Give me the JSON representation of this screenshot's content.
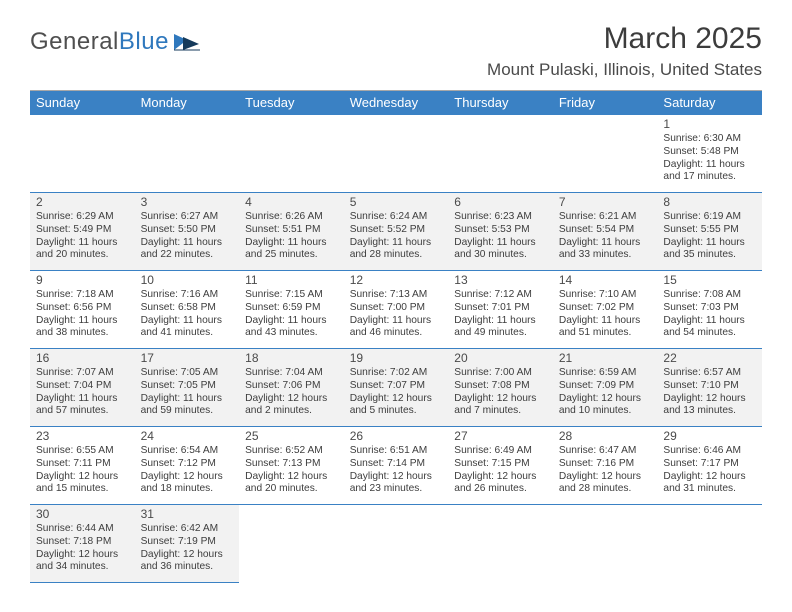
{
  "brand": {
    "general": "General",
    "blue": "Blue",
    "accent": "#2f78bd"
  },
  "header": {
    "title": "March 2025",
    "location": "Mount Pulaski, Illinois, United States"
  },
  "dow": [
    "Sunday",
    "Monday",
    "Tuesday",
    "Wednesday",
    "Thursday",
    "Friday",
    "Saturday"
  ],
  "row_bg": [
    "#ffffff",
    "#f2f2f2",
    "#ffffff",
    "#f2f2f2",
    "#ffffff",
    "#f2f2f2"
  ],
  "cell_border_color": "#3a81c4",
  "header_bg": "#3a81c4",
  "days": [
    {
      "n": "",
      "sunrise": "",
      "sunset": "",
      "daylight": ""
    },
    {
      "n": "",
      "sunrise": "",
      "sunset": "",
      "daylight": ""
    },
    {
      "n": "",
      "sunrise": "",
      "sunset": "",
      "daylight": ""
    },
    {
      "n": "",
      "sunrise": "",
      "sunset": "",
      "daylight": ""
    },
    {
      "n": "",
      "sunrise": "",
      "sunset": "",
      "daylight": ""
    },
    {
      "n": "",
      "sunrise": "",
      "sunset": "",
      "daylight": ""
    },
    {
      "n": "1",
      "sunrise": "Sunrise: 6:30 AM",
      "sunset": "Sunset: 5:48 PM",
      "daylight": "Daylight: 11 hours and 17 minutes."
    },
    {
      "n": "2",
      "sunrise": "Sunrise: 6:29 AM",
      "sunset": "Sunset: 5:49 PM",
      "daylight": "Daylight: 11 hours and 20 minutes."
    },
    {
      "n": "3",
      "sunrise": "Sunrise: 6:27 AM",
      "sunset": "Sunset: 5:50 PM",
      "daylight": "Daylight: 11 hours and 22 minutes."
    },
    {
      "n": "4",
      "sunrise": "Sunrise: 6:26 AM",
      "sunset": "Sunset: 5:51 PM",
      "daylight": "Daylight: 11 hours and 25 minutes."
    },
    {
      "n": "5",
      "sunrise": "Sunrise: 6:24 AM",
      "sunset": "Sunset: 5:52 PM",
      "daylight": "Daylight: 11 hours and 28 minutes."
    },
    {
      "n": "6",
      "sunrise": "Sunrise: 6:23 AM",
      "sunset": "Sunset: 5:53 PM",
      "daylight": "Daylight: 11 hours and 30 minutes."
    },
    {
      "n": "7",
      "sunrise": "Sunrise: 6:21 AM",
      "sunset": "Sunset: 5:54 PM",
      "daylight": "Daylight: 11 hours and 33 minutes."
    },
    {
      "n": "8",
      "sunrise": "Sunrise: 6:19 AM",
      "sunset": "Sunset: 5:55 PM",
      "daylight": "Daylight: 11 hours and 35 minutes."
    },
    {
      "n": "9",
      "sunrise": "Sunrise: 7:18 AM",
      "sunset": "Sunset: 6:56 PM",
      "daylight": "Daylight: 11 hours and 38 minutes."
    },
    {
      "n": "10",
      "sunrise": "Sunrise: 7:16 AM",
      "sunset": "Sunset: 6:58 PM",
      "daylight": "Daylight: 11 hours and 41 minutes."
    },
    {
      "n": "11",
      "sunrise": "Sunrise: 7:15 AM",
      "sunset": "Sunset: 6:59 PM",
      "daylight": "Daylight: 11 hours and 43 minutes."
    },
    {
      "n": "12",
      "sunrise": "Sunrise: 7:13 AM",
      "sunset": "Sunset: 7:00 PM",
      "daylight": "Daylight: 11 hours and 46 minutes."
    },
    {
      "n": "13",
      "sunrise": "Sunrise: 7:12 AM",
      "sunset": "Sunset: 7:01 PM",
      "daylight": "Daylight: 11 hours and 49 minutes."
    },
    {
      "n": "14",
      "sunrise": "Sunrise: 7:10 AM",
      "sunset": "Sunset: 7:02 PM",
      "daylight": "Daylight: 11 hours and 51 minutes."
    },
    {
      "n": "15",
      "sunrise": "Sunrise: 7:08 AM",
      "sunset": "Sunset: 7:03 PM",
      "daylight": "Daylight: 11 hours and 54 minutes."
    },
    {
      "n": "16",
      "sunrise": "Sunrise: 7:07 AM",
      "sunset": "Sunset: 7:04 PM",
      "daylight": "Daylight: 11 hours and 57 minutes."
    },
    {
      "n": "17",
      "sunrise": "Sunrise: 7:05 AM",
      "sunset": "Sunset: 7:05 PM",
      "daylight": "Daylight: 11 hours and 59 minutes."
    },
    {
      "n": "18",
      "sunrise": "Sunrise: 7:04 AM",
      "sunset": "Sunset: 7:06 PM",
      "daylight": "Daylight: 12 hours and 2 minutes."
    },
    {
      "n": "19",
      "sunrise": "Sunrise: 7:02 AM",
      "sunset": "Sunset: 7:07 PM",
      "daylight": "Daylight: 12 hours and 5 minutes."
    },
    {
      "n": "20",
      "sunrise": "Sunrise: 7:00 AM",
      "sunset": "Sunset: 7:08 PM",
      "daylight": "Daylight: 12 hours and 7 minutes."
    },
    {
      "n": "21",
      "sunrise": "Sunrise: 6:59 AM",
      "sunset": "Sunset: 7:09 PM",
      "daylight": "Daylight: 12 hours and 10 minutes."
    },
    {
      "n": "22",
      "sunrise": "Sunrise: 6:57 AM",
      "sunset": "Sunset: 7:10 PM",
      "daylight": "Daylight: 12 hours and 13 minutes."
    },
    {
      "n": "23",
      "sunrise": "Sunrise: 6:55 AM",
      "sunset": "Sunset: 7:11 PM",
      "daylight": "Daylight: 12 hours and 15 minutes."
    },
    {
      "n": "24",
      "sunrise": "Sunrise: 6:54 AM",
      "sunset": "Sunset: 7:12 PM",
      "daylight": "Daylight: 12 hours and 18 minutes."
    },
    {
      "n": "25",
      "sunrise": "Sunrise: 6:52 AM",
      "sunset": "Sunset: 7:13 PM",
      "daylight": "Daylight: 12 hours and 20 minutes."
    },
    {
      "n": "26",
      "sunrise": "Sunrise: 6:51 AM",
      "sunset": "Sunset: 7:14 PM",
      "daylight": "Daylight: 12 hours and 23 minutes."
    },
    {
      "n": "27",
      "sunrise": "Sunrise: 6:49 AM",
      "sunset": "Sunset: 7:15 PM",
      "daylight": "Daylight: 12 hours and 26 minutes."
    },
    {
      "n": "28",
      "sunrise": "Sunrise: 6:47 AM",
      "sunset": "Sunset: 7:16 PM",
      "daylight": "Daylight: 12 hours and 28 minutes."
    },
    {
      "n": "29",
      "sunrise": "Sunrise: 6:46 AM",
      "sunset": "Sunset: 7:17 PM",
      "daylight": "Daylight: 12 hours and 31 minutes."
    },
    {
      "n": "30",
      "sunrise": "Sunrise: 6:44 AM",
      "sunset": "Sunset: 7:18 PM",
      "daylight": "Daylight: 12 hours and 34 minutes."
    },
    {
      "n": "31",
      "sunrise": "Sunrise: 6:42 AM",
      "sunset": "Sunset: 7:19 PM",
      "daylight": "Daylight: 12 hours and 36 minutes."
    },
    {
      "n": "",
      "sunrise": "",
      "sunset": "",
      "daylight": ""
    },
    {
      "n": "",
      "sunrise": "",
      "sunset": "",
      "daylight": ""
    },
    {
      "n": "",
      "sunrise": "",
      "sunset": "",
      "daylight": ""
    },
    {
      "n": "",
      "sunrise": "",
      "sunset": "",
      "daylight": ""
    },
    {
      "n": "",
      "sunrise": "",
      "sunset": "",
      "daylight": ""
    }
  ]
}
